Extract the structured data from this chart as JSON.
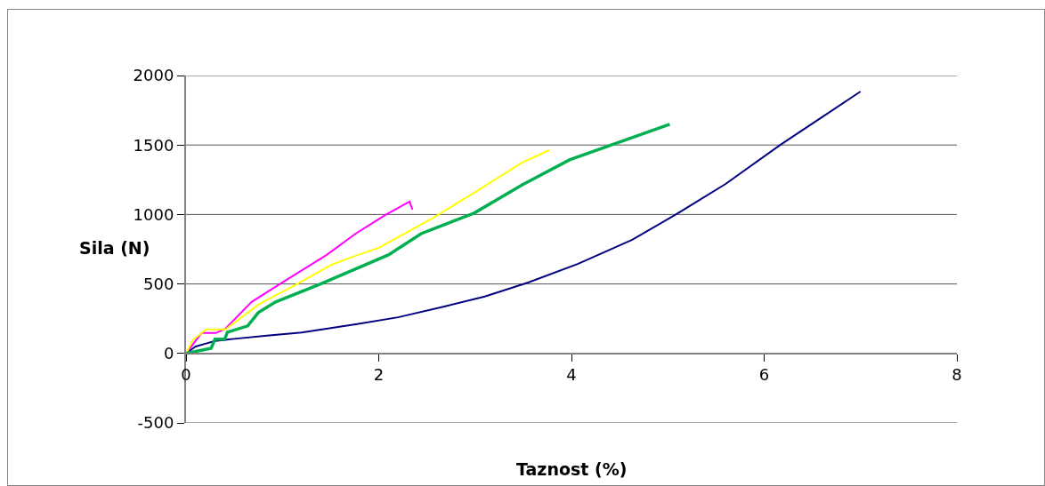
{
  "chart_data": {
    "type": "line",
    "xlabel": "Taznost (%)",
    "ylabel": "Sila (N)",
    "xlim": [
      0,
      8
    ],
    "xticks": [
      0,
      2,
      4,
      6,
      8
    ],
    "ylim": [
      -500,
      2000
    ],
    "yticks": [
      -500,
      0,
      500,
      1000,
      1500,
      2000
    ],
    "grid": "y",
    "marker": "none",
    "line_style": "solid",
    "series": [
      {
        "color": "#000080",
        "x": [
          0,
          0.1,
          0.2,
          0.3,
          0.5,
          0.84,
          1.2,
          1.76,
          2.2,
          2.69,
          3.1,
          3.55,
          4.07,
          4.63,
          5.06,
          5.6,
          6.17,
          6.6,
          7.0
        ],
        "values": [
          0,
          50,
          70,
          90,
          105,
          128,
          150,
          210,
          260,
          339,
          410,
          510,
          645,
          818,
          990,
          1220,
          1502,
          1700,
          1885
        ]
      },
      {
        "color": "#ff00ff",
        "x": [
          0,
          0.16,
          0.31,
          0.41,
          0.68,
          1.0,
          1.46,
          1.76,
          2.07,
          2.32,
          2.35
        ],
        "values": [
          0,
          147,
          147,
          179,
          371,
          511,
          709,
          862,
          997,
          1093,
          1035
        ]
      },
      {
        "color": "#ffff00",
        "x": [
          0,
          0.07,
          0.21,
          0.41,
          0.75,
          1.15,
          1.51,
          1.76,
          2.0,
          2.57,
          2.99,
          3.49,
          3.77
        ],
        "values": [
          0,
          96,
          173,
          173,
          351,
          498,
          639,
          703,
          760,
          978,
          1157,
          1374,
          1463
        ]
      },
      {
        "color": "#00b050",
        "x": [
          0,
          0.26,
          0.3,
          0.4,
          0.43,
          0.64,
          0.75,
          0.93,
          1.39,
          2.1,
          2.44,
          2.99,
          3.49,
          3.98,
          5.02
        ],
        "values": [
          0,
          38,
          102,
          102,
          153,
          198,
          294,
          371,
          498,
          709,
          862,
          1010,
          1214,
          1393,
          1649
        ]
      }
    ]
  }
}
